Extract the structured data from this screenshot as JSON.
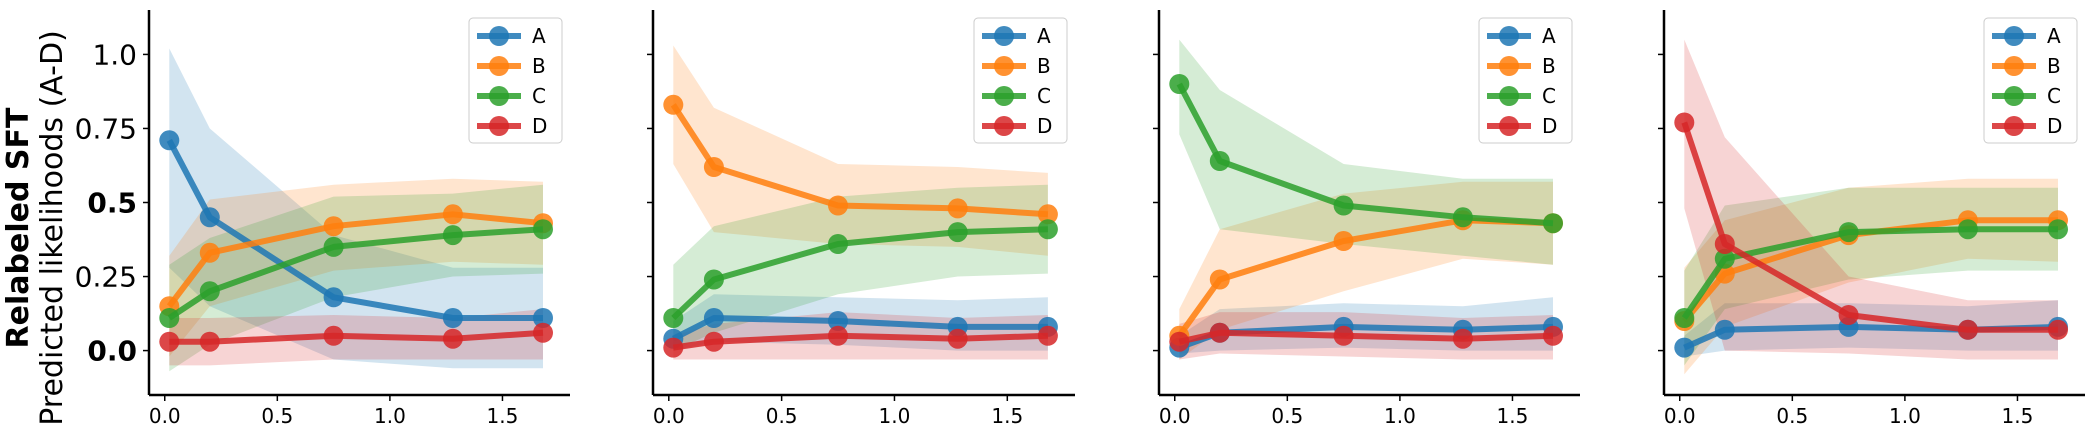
{
  "figure": {
    "ylabel_bold": "Relabeled SFT",
    "ylabel": "Predicted likelihoods (A-D)"
  },
  "colors": {
    "A": "#1f77b4",
    "B": "#ff7f0e",
    "C": "#2ca02c",
    "D": "#d62728"
  },
  "chart_data": [
    {
      "type": "line",
      "x": [
        0.02,
        0.2,
        0.75,
        1.28,
        1.68
      ],
      "xlim": [
        -0.07,
        1.8
      ],
      "ylim": [
        -0.15,
        1.15
      ],
      "xticks": [
        "0.0",
        "0.5",
        "1.0",
        "1.5"
      ],
      "yticks": [
        "0.0",
        "0.25",
        "0.5",
        "0.75",
        "1.0"
      ],
      "legend": "top-right",
      "series": [
        {
          "name": "A",
          "values": [
            0.71,
            0.45,
            0.18,
            0.11,
            0.11
          ],
          "lower": [
            0.28,
            0.15,
            -0.03,
            -0.06,
            -0.06
          ],
          "upper": [
            1.02,
            0.75,
            0.39,
            0.28,
            0.28
          ]
        },
        {
          "name": "B",
          "values": [
            0.15,
            0.33,
            0.42,
            0.46,
            0.43
          ],
          "lower": [
            -0.02,
            0.15,
            0.27,
            0.3,
            0.29
          ],
          "upper": [
            0.32,
            0.51,
            0.56,
            0.58,
            0.57
          ]
        },
        {
          "name": "C",
          "values": [
            0.11,
            0.2,
            0.35,
            0.39,
            0.41
          ],
          "lower": [
            -0.07,
            0.02,
            0.18,
            0.25,
            0.26
          ],
          "upper": [
            0.29,
            0.38,
            0.52,
            0.53,
            0.56
          ]
        },
        {
          "name": "D",
          "values": [
            0.03,
            0.03,
            0.05,
            0.04,
            0.06
          ],
          "lower": [
            -0.05,
            -0.05,
            -0.03,
            -0.03,
            -0.03
          ],
          "upper": [
            0.11,
            0.11,
            0.12,
            0.11,
            0.14
          ]
        }
      ]
    },
    {
      "type": "line",
      "x": [
        0.02,
        0.2,
        0.75,
        1.28,
        1.68
      ],
      "xlim": [
        -0.07,
        1.8
      ],
      "ylim": [
        -0.15,
        1.15
      ],
      "xticks": [
        "0.0",
        "0.5",
        "1.0",
        "1.5"
      ],
      "yticks": [],
      "legend": "top-right",
      "series": [
        {
          "name": "A",
          "values": [
            0.04,
            0.11,
            0.1,
            0.08,
            0.08
          ],
          "lower": [
            0.0,
            0.03,
            0.02,
            0.0,
            0.0
          ],
          "upper": [
            0.1,
            0.19,
            0.18,
            0.17,
            0.18
          ]
        },
        {
          "name": "B",
          "values": [
            0.83,
            0.62,
            0.49,
            0.48,
            0.46
          ],
          "lower": [
            0.63,
            0.4,
            0.36,
            0.35,
            0.32
          ],
          "upper": [
            1.03,
            0.82,
            0.63,
            0.62,
            0.6
          ]
        },
        {
          "name": "C",
          "values": [
            0.11,
            0.24,
            0.36,
            0.4,
            0.41
          ],
          "lower": [
            0.0,
            0.06,
            0.19,
            0.25,
            0.26
          ],
          "upper": [
            0.29,
            0.42,
            0.52,
            0.55,
            0.56
          ]
        },
        {
          "name": "D",
          "values": [
            0.01,
            0.03,
            0.05,
            0.04,
            0.05
          ],
          "lower": [
            -0.03,
            -0.03,
            -0.03,
            -0.03,
            -0.03
          ],
          "upper": [
            0.05,
            0.09,
            0.13,
            0.11,
            0.12
          ]
        }
      ]
    },
    {
      "type": "line",
      "x": [
        0.02,
        0.2,
        0.75,
        1.28,
        1.68
      ],
      "xlim": [
        -0.07,
        1.8
      ],
      "ylim": [
        -0.15,
        1.15
      ],
      "xticks": [
        "0.0",
        "0.5",
        "1.0",
        "1.5"
      ],
      "yticks": [],
      "legend": "top-right",
      "series": [
        {
          "name": "A",
          "values": [
            0.01,
            0.06,
            0.08,
            0.07,
            0.08
          ],
          "lower": [
            -0.01,
            0.0,
            0.01,
            0.0,
            0.0
          ],
          "upper": [
            0.05,
            0.14,
            0.16,
            0.15,
            0.18
          ]
        },
        {
          "name": "B",
          "values": [
            0.05,
            0.24,
            0.37,
            0.44,
            0.43
          ],
          "lower": [
            -0.03,
            0.07,
            0.2,
            0.31,
            0.29
          ],
          "upper": [
            0.14,
            0.41,
            0.53,
            0.57,
            0.57
          ]
        },
        {
          "name": "C",
          "values": [
            0.9,
            0.64,
            0.49,
            0.45,
            0.43
          ],
          "lower": [
            0.73,
            0.41,
            0.36,
            0.32,
            0.29
          ],
          "upper": [
            1.05,
            0.88,
            0.63,
            0.58,
            0.58
          ]
        },
        {
          "name": "D",
          "values": [
            0.03,
            0.06,
            0.05,
            0.04,
            0.05
          ],
          "lower": [
            -0.03,
            -0.01,
            -0.02,
            -0.03,
            -0.03
          ],
          "upper": [
            0.09,
            0.13,
            0.13,
            0.11,
            0.12
          ]
        }
      ]
    },
    {
      "type": "line",
      "x": [
        0.02,
        0.2,
        0.75,
        1.28,
        1.68
      ],
      "xlim": [
        -0.07,
        1.8
      ],
      "ylim": [
        -0.15,
        1.15
      ],
      "xticks": [
        "0.0",
        "0.5",
        "1.0",
        "1.5"
      ],
      "yticks": [],
      "legend": "top-right",
      "series": [
        {
          "name": "A",
          "values": [
            0.01,
            0.07,
            0.08,
            0.07,
            0.08
          ],
          "lower": [
            -0.02,
            0.0,
            0.01,
            0.0,
            0.0
          ],
          "upper": [
            0.05,
            0.16,
            0.16,
            0.15,
            0.17
          ]
        },
        {
          "name": "B",
          "values": [
            0.1,
            0.26,
            0.39,
            0.44,
            0.44
          ],
          "lower": [
            -0.08,
            0.08,
            0.23,
            0.31,
            0.3
          ],
          "upper": [
            0.28,
            0.44,
            0.55,
            0.58,
            0.58
          ]
        },
        {
          "name": "C",
          "values": [
            0.11,
            0.31,
            0.4,
            0.41,
            0.41
          ],
          "lower": [
            -0.05,
            0.14,
            0.24,
            0.27,
            0.27
          ],
          "upper": [
            0.27,
            0.49,
            0.55,
            0.55,
            0.55
          ]
        },
        {
          "name": "D",
          "values": [
            0.77,
            0.36,
            0.12,
            0.07,
            0.07
          ],
          "lower": [
            0.48,
            0.0,
            -0.01,
            -0.03,
            -0.03
          ],
          "upper": [
            1.05,
            0.72,
            0.25,
            0.17,
            0.17
          ]
        }
      ]
    }
  ]
}
